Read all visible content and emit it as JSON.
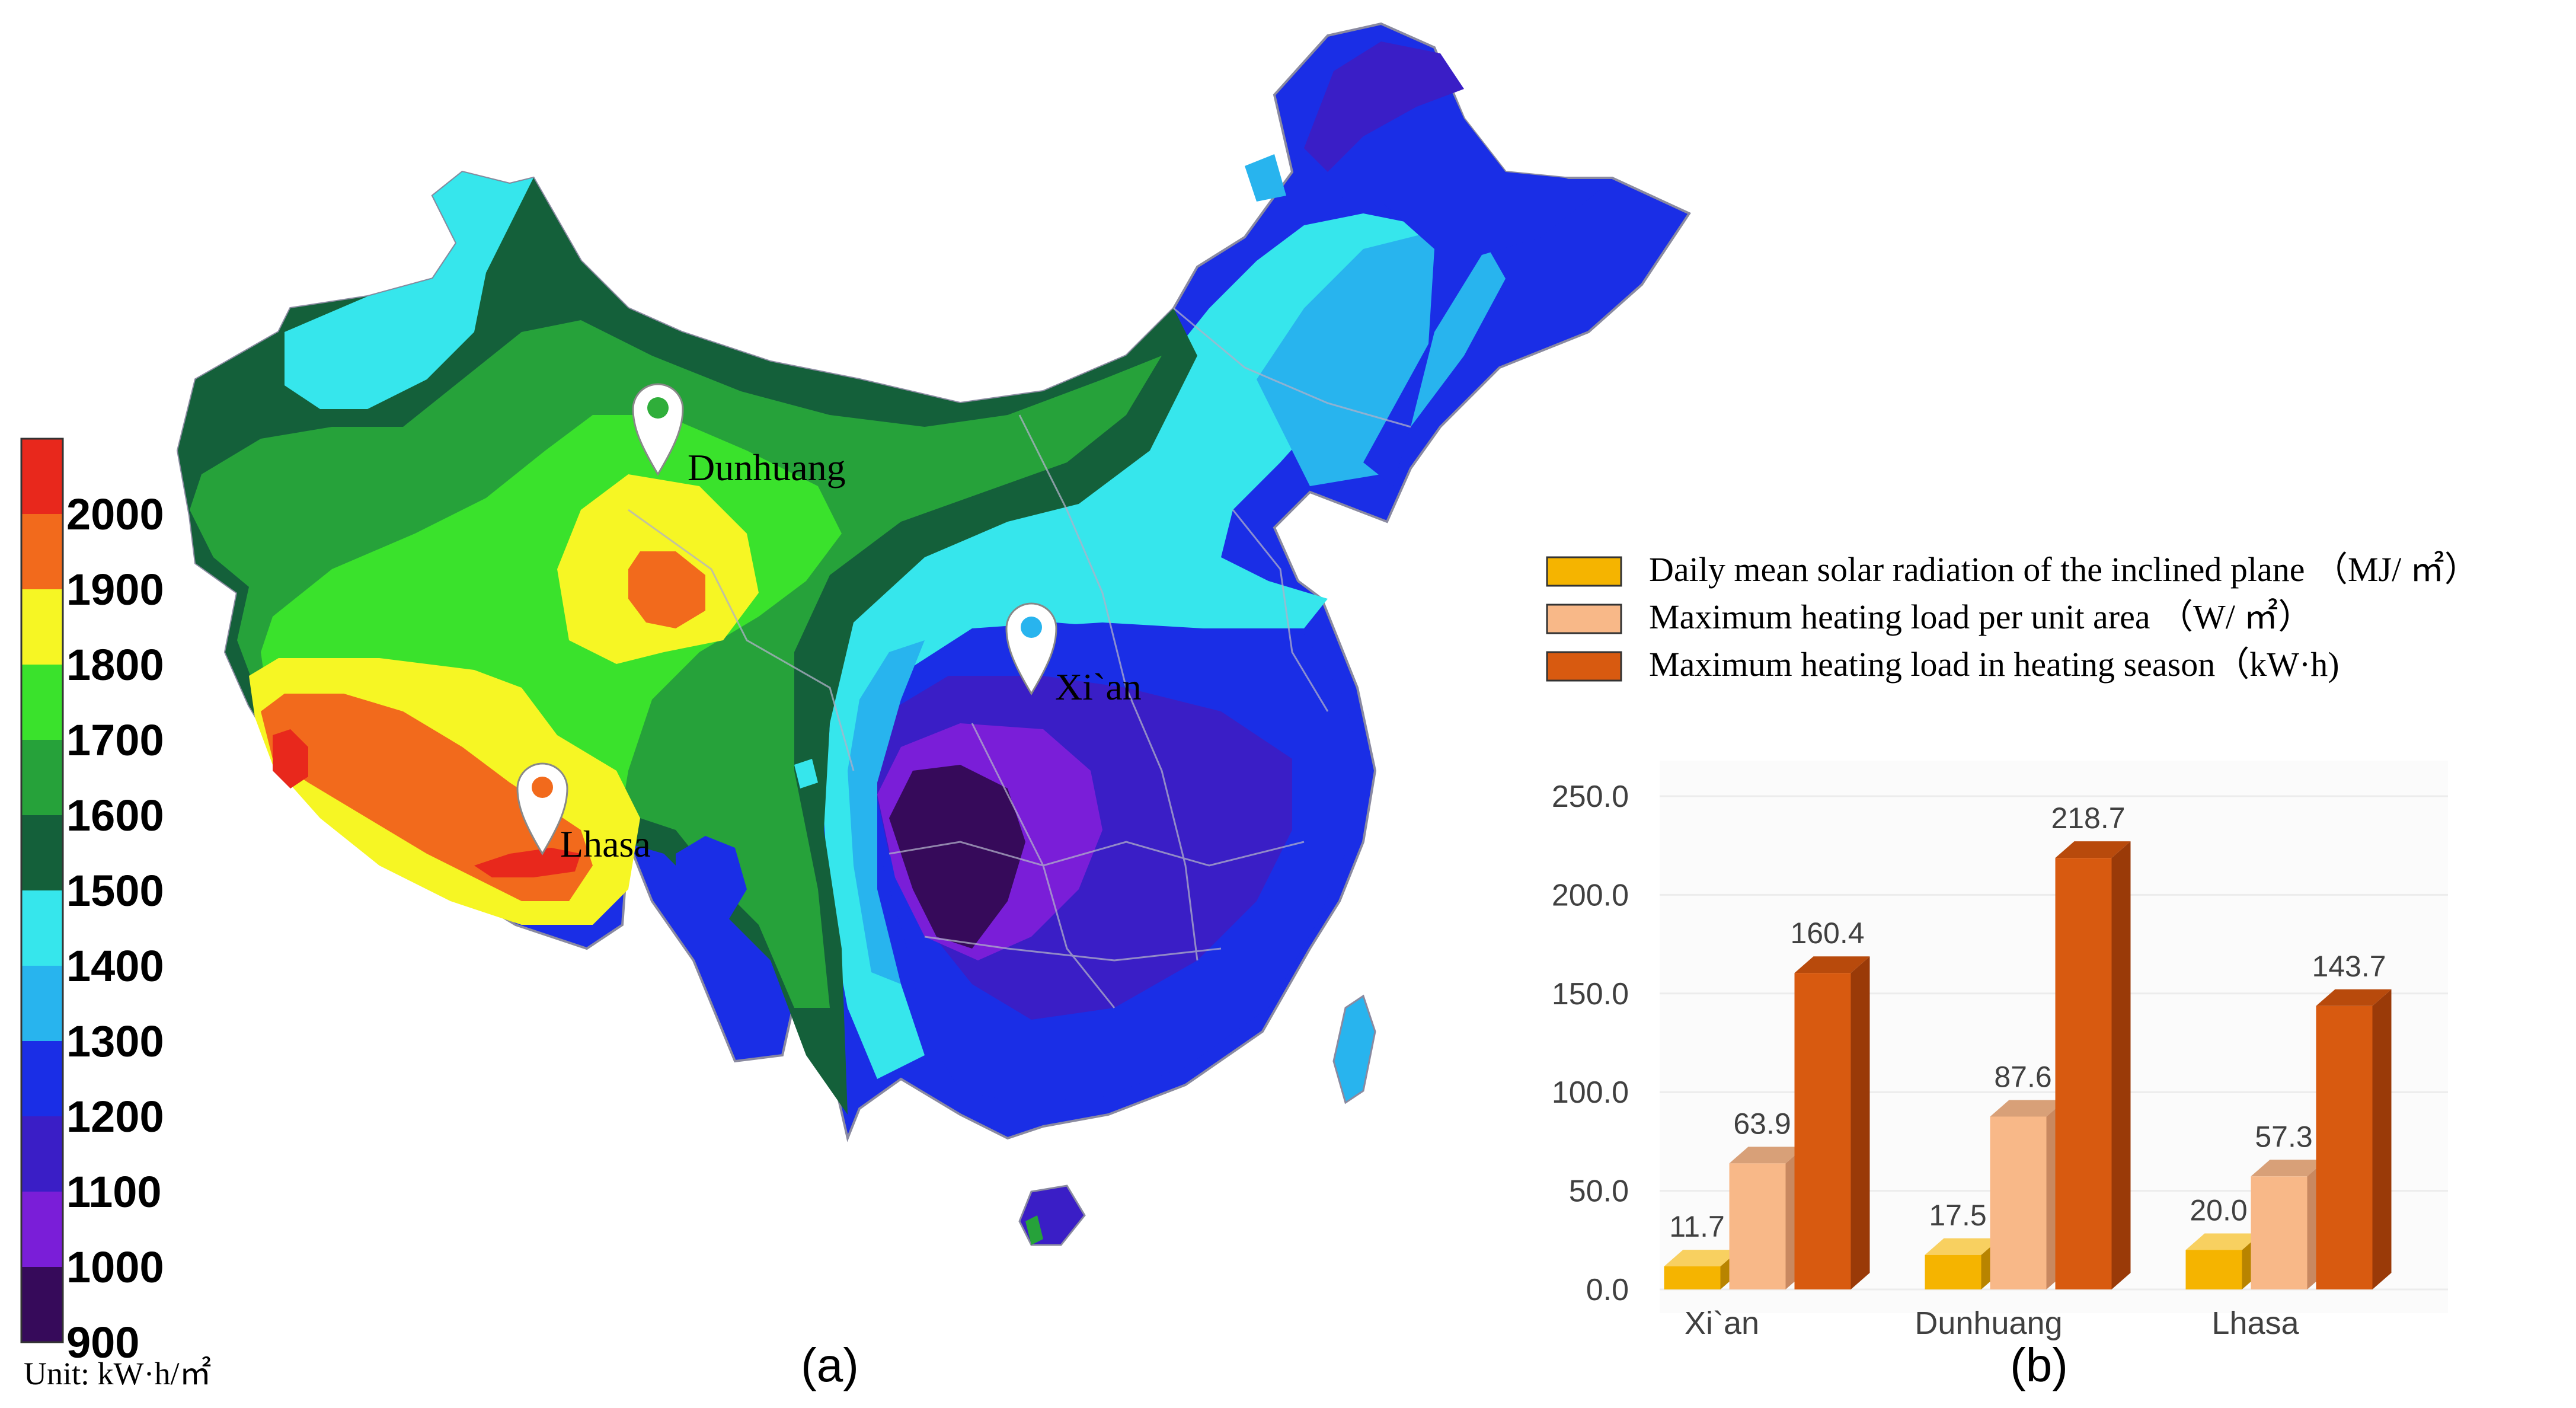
{
  "panel_a": {
    "label": "(a)",
    "unit_text": "Unit:  kW·h/㎡",
    "scale": {
      "ticks": [
        "2000",
        "1900",
        "1800",
        "1700",
        "1600",
        "1500",
        "1400",
        "1300",
        "1200",
        "1100",
        "1000",
        "900"
      ],
      "colors": [
        "#e8281c",
        "#f26a1c",
        "#f6f624",
        "#3ae22c",
        "#26a23a",
        "#14603a",
        "#36e6ec",
        "#28b4ee",
        "#1a2ee6",
        "#3a1ec6",
        "#7a1ed8",
        "#360a5a"
      ]
    },
    "sites": [
      {
        "name": "Dunhuang",
        "pin_color": "#2fae3a"
      },
      {
        "name": "Xi`an",
        "pin_color": "#28b4ee"
      },
      {
        "name": "Lhasa",
        "pin_color": "#f26a1c"
      }
    ],
    "region_colors": {
      "outline": "#8a8aa0",
      "cyan": "#36e6ec",
      "light_blue": "#28b4ee",
      "blue": "#1a2ee6",
      "indigo": "#3a1ec6",
      "purple": "#7a1ed8",
      "dark_purple": "#360a5a",
      "dark_green": "#14603a",
      "green": "#26a23a",
      "bright_green": "#3ae22c",
      "yellow": "#f6f624",
      "orange": "#f26a1c",
      "red": "#e8281c"
    }
  },
  "panel_b": {
    "label": "(b)",
    "chart_data": {
      "type": "bar",
      "categories": [
        "Xi`an",
        "Dunhuang",
        "Lhasa"
      ],
      "ylim": [
        0,
        250
      ],
      "yticks": [
        "0.0",
        "50.0",
        "100.0",
        "150.0",
        "200.0",
        "250.0"
      ],
      "legend_position": "top",
      "series": [
        {
          "name": "Daily mean solar radiation of the inclined plane （MJ/ ㎡）",
          "values": [
            11.7,
            17.5,
            20.0
          ],
          "labels": [
            "11.7",
            "17.5",
            "20.0"
          ],
          "color": "#f5b400",
          "side": "#b88400",
          "top": "#f8d060"
        },
        {
          "name": "Maximum heating load per unit area （W/ ㎡）",
          "values": [
            63.9,
            87.6,
            57.3
          ],
          "labels": [
            "63.9",
            "87.6",
            "57.3"
          ],
          "color": "#f8b888",
          "side": "#c88860",
          "top": "#d8a078"
        },
        {
          "name": "Maximum heating load in heating season（kW·h)",
          "values": [
            160.4,
            218.7,
            143.7
          ],
          "labels": [
            "160.4",
            "218.7",
            "143.7"
          ],
          "color": "#d85a10",
          "side": "#9a3a08",
          "top": "#b84a0c"
        }
      ]
    }
  }
}
